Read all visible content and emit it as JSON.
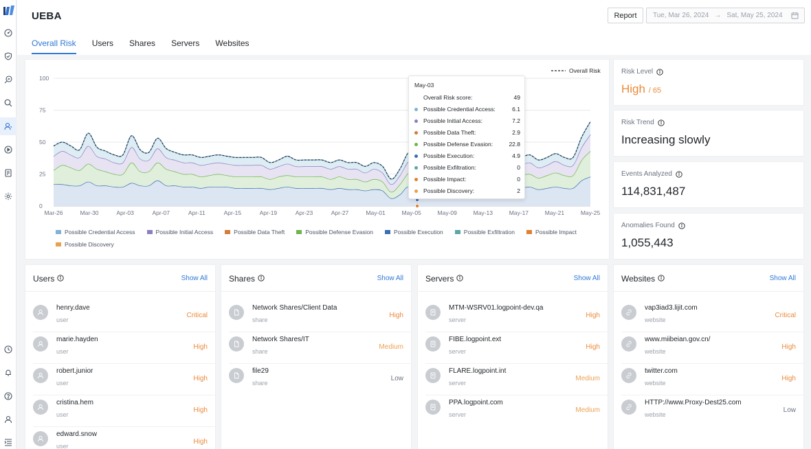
{
  "app": {
    "title": "UEBA"
  },
  "header": {
    "report_label": "Report",
    "date_from": "Tue, Mar 26, 2024",
    "date_arrow": "→",
    "date_to": "Sat, May 25, 2024"
  },
  "tabs": [
    {
      "label": "Overall Risk",
      "active": true
    },
    {
      "label": "Users"
    },
    {
      "label": "Shares"
    },
    {
      "label": "Servers"
    },
    {
      "label": "Websites"
    }
  ],
  "sidebar": {
    "top_icons": [
      "dashboard-icon",
      "shield-icon",
      "search-analytics-icon",
      "search-icon",
      "users-icon",
      "play-circle-icon",
      "report-icon",
      "settings-icon"
    ],
    "bottom_icons": [
      "clock-icon",
      "bell-icon",
      "help-icon",
      "user-icon",
      "menu-collapse-icon"
    ]
  },
  "metrics": {
    "risk_level": {
      "label": "Risk Level",
      "value": "High",
      "sub": "/ 65"
    },
    "risk_trend": {
      "label": "Risk Trend",
      "value": "Increasing slowly"
    },
    "events": {
      "label": "Events Analyzed",
      "value": "114,831,487"
    },
    "anomalies": {
      "label": "Anomalies Found",
      "value": "1,055,443"
    }
  },
  "chart_data": {
    "type": "area",
    "x_ticks": [
      "Mar-26",
      "Mar-30",
      "Apr-03",
      "Apr-07",
      "Apr-11",
      "Apr-15",
      "Apr-19",
      "Apr-23",
      "Apr-27",
      "May-01",
      "May-05",
      "May-09",
      "May-13",
      "May-17",
      "May-21",
      "May-25"
    ],
    "ylim": [
      0,
      100
    ],
    "y_ticks": [
      0,
      25,
      50,
      75,
      100
    ],
    "grid": true,
    "overall_legend": "Overall Risk",
    "legend": [
      {
        "name": "Possible Credential Access",
        "color": "#7fb2d4"
      },
      {
        "name": "Possible Initial Access",
        "color": "#8b7fc0"
      },
      {
        "name": "Possible Data Theft",
        "color": "#d27d38"
      },
      {
        "name": "Possible Defense Evasion",
        "color": "#6fb54f"
      },
      {
        "name": "Possible Execution",
        "color": "#3b6faf"
      },
      {
        "name": "Possible Exfiltration",
        "color": "#5aa7a5"
      },
      {
        "name": "Possible Impact",
        "color": "#e0812f"
      },
      {
        "name": "Possible Discovery",
        "color": "#e9a14d"
      }
    ],
    "series": [
      {
        "name": "Possible Execution",
        "color": "#3b6faf",
        "fill": "#dce5f2",
        "values": [
          17,
          17,
          16,
          16,
          19,
          16,
          16,
          15,
          15,
          18,
          16,
          16,
          20,
          16,
          16,
          15,
          15,
          14,
          15,
          15,
          15,
          14,
          14,
          14,
          14,
          13,
          14,
          15,
          14,
          14,
          14,
          14,
          13,
          14,
          13,
          13,
          12,
          13,
          12,
          6,
          9,
          15,
          4.9,
          15,
          18,
          20,
          14,
          17,
          18,
          14,
          16,
          14,
          14,
          13,
          14,
          15,
          13,
          14,
          15,
          14,
          14,
          20,
          23
        ]
      },
      {
        "name": "Possible Defense Evasion",
        "color": "#6fb54f",
        "fill": "#e0efdb",
        "values": [
          11,
          15,
          14,
          12,
          14,
          13,
          11,
          10,
          10,
          16,
          11,
          11,
          14,
          13,
          11,
          10,
          10,
          9,
          9,
          10,
          9,
          9,
          9,
          9,
          9,
          8,
          9,
          9,
          9,
          9,
          9,
          9,
          8,
          9,
          8,
          8,
          7,
          8,
          7,
          5,
          8,
          11,
          22.8,
          12,
          18,
          16,
          10,
          13,
          14,
          11,
          11,
          10,
          10,
          9,
          10,
          10,
          9,
          10,
          11,
          10,
          10,
          16,
          20
        ]
      },
      {
        "name": "Possible Initial Access",
        "color": "#8b7fc0",
        "fill": "#e7e3f2",
        "values": [
          11,
          11,
          10,
          10,
          14,
          10,
          10,
          9,
          9,
          12,
          10,
          9,
          11,
          9,
          9,
          9,
          9,
          9,
          9,
          9,
          9,
          9,
          9,
          9,
          9,
          8,
          8,
          9,
          8,
          8,
          8,
          8,
          8,
          8,
          8,
          8,
          7,
          8,
          7,
          6,
          7,
          9,
          7.2,
          9,
          12,
          12,
          9,
          10,
          11,
          8,
          9,
          8,
          8,
          8,
          8,
          9,
          8,
          8,
          9,
          8,
          8,
          10,
          13
        ]
      },
      {
        "name": "Possible Credential Access",
        "color": "#7fb2d4",
        "fill": "#deecf4",
        "values": [
          8,
          7,
          7,
          6,
          10,
          7,
          6,
          6,
          6,
          9,
          7,
          6,
          8,
          7,
          6,
          6,
          6,
          6,
          6,
          6,
          6,
          6,
          6,
          6,
          6,
          5,
          5,
          6,
          5,
          5,
          5,
          5,
          5,
          5,
          5,
          5,
          5,
          5,
          5,
          4,
          5,
          7,
          6.1,
          6,
          8,
          8,
          6,
          7,
          7,
          6,
          6,
          6,
          6,
          6,
          6,
          6,
          6,
          6,
          6,
          6,
          6,
          8,
          10
        ]
      }
    ],
    "tooltip": {
      "title": "May-03",
      "rows": [
        {
          "label": "Overall Risk score:",
          "value": "49"
        },
        {
          "label": "Possible Credential Access:",
          "value": "6.1",
          "color": "#7fb2d4"
        },
        {
          "label": "Possible Initial Access:",
          "value": "7.2",
          "color": "#8b7fc0"
        },
        {
          "label": "Possible Data Theft:",
          "value": "2.9",
          "color": "#d27d38"
        },
        {
          "label": "Possible Defense Evasion:",
          "value": "22.8",
          "color": "#6fb54f"
        },
        {
          "label": "Possible Execution:",
          "value": "4.9",
          "color": "#3b6faf"
        },
        {
          "label": "Possible Exfiltration:",
          "value": "0",
          "color": "#5aa7a5"
        },
        {
          "label": "Possible Impact:",
          "value": "0",
          "color": "#e0812f"
        },
        {
          "label": "Possible Discovery:",
          "value": "2",
          "color": "#e9a14d"
        }
      ]
    }
  },
  "lists": {
    "users": {
      "title": "Users",
      "show_all": "Show All",
      "items": [
        {
          "name": "henry.dave",
          "type": "user",
          "level": "Critical"
        },
        {
          "name": "marie.hayden",
          "type": "user",
          "level": "High"
        },
        {
          "name": "robert.junior",
          "type": "user",
          "level": "High"
        },
        {
          "name": "cristina.hem",
          "type": "user",
          "level": "High"
        },
        {
          "name": "edward.snow",
          "type": "user",
          "level": "High"
        }
      ]
    },
    "shares": {
      "title": "Shares",
      "show_all": "Show All",
      "items": [
        {
          "name": "Network Shares/Client Data",
          "type": "share",
          "level": "High"
        },
        {
          "name": "Network Shares/IT",
          "type": "share",
          "level": "Medium"
        },
        {
          "name": "file29",
          "type": "share",
          "level": "Low"
        }
      ]
    },
    "servers": {
      "title": "Servers",
      "show_all": "Show All",
      "items": [
        {
          "name": "MTM-WSRV01.logpoint-dev.qa",
          "type": "server",
          "level": "High"
        },
        {
          "name": "FIBE.logpoint.ext",
          "type": "server",
          "level": "High"
        },
        {
          "name": "FLARE.logpoint.int",
          "type": "server",
          "level": "Medium"
        },
        {
          "name": "PPA.logpoint.com",
          "type": "server",
          "level": "Medium"
        }
      ]
    },
    "websites": {
      "title": "Websites",
      "show_all": "Show All",
      "items": [
        {
          "name": "vap3iad3.lijit.com",
          "type": "website",
          "level": "Critical"
        },
        {
          "name": "www.miibeian.gov.cn/",
          "type": "website",
          "level": "High"
        },
        {
          "name": "twitter.com",
          "type": "website",
          "level": "High"
        },
        {
          "name": "HTTP://www.Proxy-Dest25.com",
          "type": "website",
          "level": "Low"
        }
      ]
    }
  }
}
